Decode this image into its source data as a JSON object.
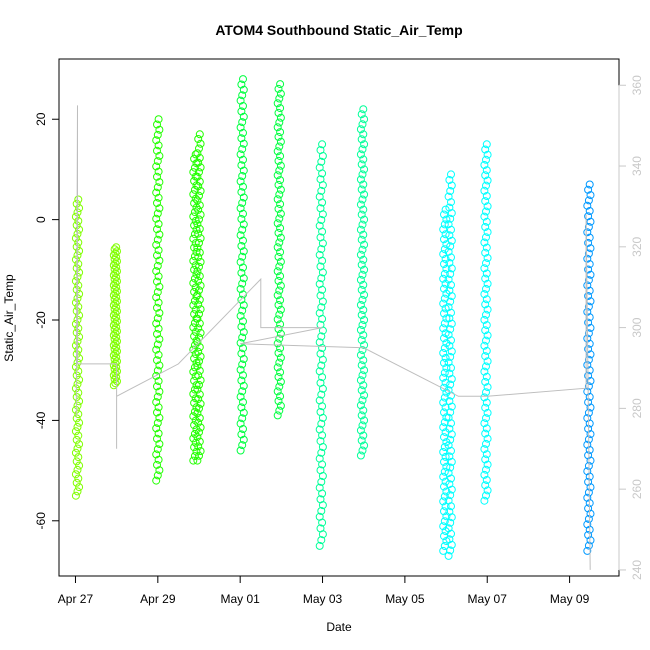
{
  "chart_data": {
    "type": "scatter",
    "title": "ATOM4 Southbound Static_Air_Temp",
    "xlabel": "Date",
    "ylabel": "Static_Air_Temp",
    "x_ticks": [
      "Apr 27",
      "Apr 29",
      "May 01",
      "May 03",
      "May 05",
      "May 07",
      "May 09"
    ],
    "x_tick_values": [
      0,
      2,
      4,
      6,
      8,
      10,
      12
    ],
    "xlim": [
      -0.4,
      13.2
    ],
    "y_ticks": [
      -60,
      -40,
      -20,
      0,
      20
    ],
    "ylim": [
      -71,
      32
    ],
    "y2_ticks": [
      240,
      260,
      280,
      300,
      320,
      340,
      360
    ],
    "y2lim": [
      238.5,
      366.5
    ],
    "grid": false,
    "legend": "none",
    "marker": "open-circle",
    "point_colors": [
      "#80ff00",
      "#22ff00",
      "#00ff40",
      "#00ff99",
      "#00ffff",
      "#0099ff"
    ],
    "line_color": "#bebebe",
    "series": [
      {
        "x": 0.05,
        "ymin": -55,
        "ymax": 4,
        "color": "#80ff00"
      },
      {
        "x": 0.97,
        "ymin": -33,
        "ymax": -5.5,
        "color": "#80ff00"
      },
      {
        "x": 2.0,
        "ymin": -52,
        "ymax": 20,
        "color": "#22ff00"
      },
      {
        "x": 2.9,
        "ymin": -48,
        "ymax": 13,
        "color": "#22ff00"
      },
      {
        "x": 3.0,
        "ymin": -48,
        "ymax": 17,
        "color": "#22ff00"
      },
      {
        "x": 4.05,
        "ymin": -46,
        "ymax": 28,
        "color": "#00ff40"
      },
      {
        "x": 4.95,
        "ymin": -39,
        "ymax": 27,
        "color": "#00ff40"
      },
      {
        "x": 5.97,
        "ymin": -65,
        "ymax": 15,
        "color": "#00ff99"
      },
      {
        "x": 6.97,
        "ymin": -47,
        "ymax": 22,
        "color": "#00ff99"
      },
      {
        "x": 8.97,
        "ymin": -66,
        "ymax": 2,
        "color": "#00ffff"
      },
      {
        "x": 9.1,
        "ymin": -67,
        "ymax": 9,
        "color": "#00ffff"
      },
      {
        "x": 9.97,
        "ymin": -56,
        "ymax": 15,
        "color": "#00ffff"
      },
      {
        "x": 12.47,
        "ymin": -66,
        "ymax": 7,
        "color": "#0099ff"
      }
    ],
    "secondary_line": [
      {
        "x": 0.02,
        "y": 278
      },
      {
        "x": 0.05,
        "y": 355
      },
      {
        "x": 0.05,
        "y": 291
      },
      {
        "x": 1.0,
        "y": 291
      },
      {
        "x": 1.0,
        "y": 270
      },
      {
        "x": 1.0,
        "y": 283
      },
      {
        "x": 2.5,
        "y": 291
      },
      {
        "x": 4.5,
        "y": 312
      },
      {
        "x": 4.5,
        "y": 300
      },
      {
        "x": 6.0,
        "y": 300
      },
      {
        "x": 4.0,
        "y": 296
      },
      {
        "x": 7.0,
        "y": 295
      },
      {
        "x": 9.3,
        "y": 283
      },
      {
        "x": 10.0,
        "y": 283
      },
      {
        "x": 12.4,
        "y": 285
      },
      {
        "x": 12.4,
        "y": 328
      },
      {
        "x": 12.5,
        "y": 240
      }
    ]
  }
}
